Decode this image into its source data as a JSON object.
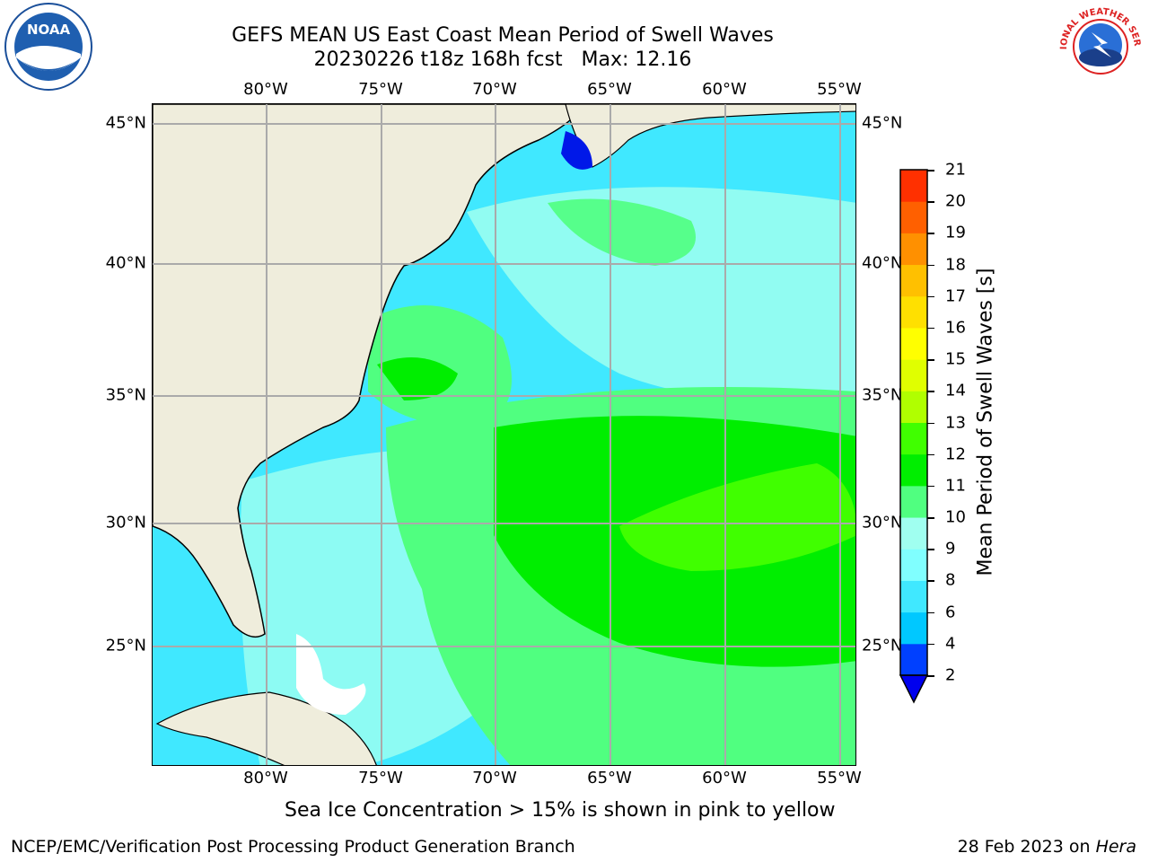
{
  "header": {
    "title_line1": "GEFS MEAN US East Coast Mean Period of Swell Waves",
    "title_line2": "20230226 t18z 168h fcst   Max: 12.16"
  },
  "logos": {
    "left": {
      "icon": "noaa-logo",
      "text": "NOAA"
    },
    "right": {
      "icon": "nws-logo",
      "text": "NATIONAL WEATHER SERVICE"
    }
  },
  "map": {
    "region": "US East Coast",
    "lon_range": [
      -85,
      -54.5
    ],
    "lat_range": [
      20.5,
      45.8
    ],
    "lon_ticks": [
      "80°W",
      "75°W",
      "70°W",
      "65°W",
      "60°W",
      "55°W"
    ],
    "lat_ticks": [
      "45°N",
      "40°N",
      "35°N",
      "30°N",
      "25°N"
    ],
    "land_color": "#efeddc",
    "grid_color": "#aaaaaa"
  },
  "colorbar": {
    "label": "Mean Period of Swell Waves [s]",
    "ticks": [
      "2",
      "4",
      "6",
      "8",
      "9",
      "10",
      "11",
      "12",
      "13",
      "14",
      "15",
      "16",
      "17",
      "18",
      "19",
      "20",
      "21"
    ],
    "colors": [
      "#0040ff",
      "#00c8ff",
      "#40e8ff",
      "#80ffff",
      "#a0fff0",
      "#50ff80",
      "#00ee00",
      "#40ff00",
      "#b0ff00",
      "#e0ff00",
      "#ffff00",
      "#ffe000",
      "#ffc000",
      "#ff9000",
      "#ff6000",
      "#ff3000",
      "#ff0000"
    ],
    "under_color": "#0000ee"
  },
  "caption": "Sea Ice Concentration > 15% is shown in pink to yellow",
  "footer": {
    "left": "NCEP/EMC/Verification Post Processing Product Generation Branch",
    "right_prefix": "28 Feb 2023 on ",
    "right_italic": "Hera"
  }
}
